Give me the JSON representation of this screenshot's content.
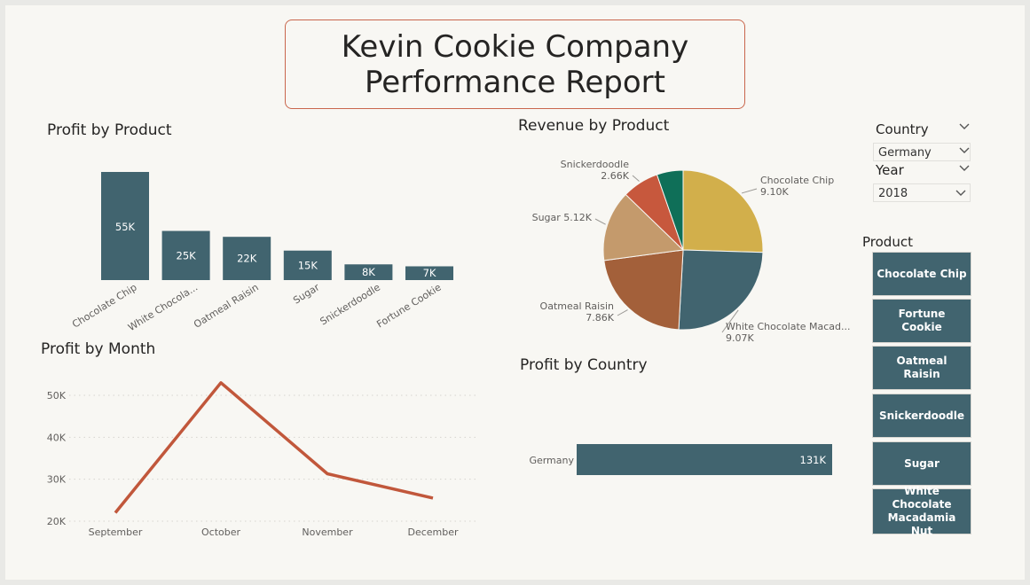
{
  "report": {
    "title_line1": "Kevin Cookie Company",
    "title_line2": "Performance Report"
  },
  "colors": {
    "teal": "#41646f",
    "orange_line": "#c1573b",
    "background": "#f8f7f3",
    "title_border": "#c9664c"
  },
  "slicers": {
    "country_label": "Country",
    "country_value": "Germany",
    "year_label": "Year",
    "year_value": "2018",
    "product_label": "Product",
    "products": [
      "Chocolate Chip",
      "Fortune Cookie",
      "Oatmeal Raisin",
      "Snickerdoodle",
      "Sugar",
      "White Chocolate Macadamia Nut"
    ]
  },
  "chart_data": [
    {
      "id": "profit-by-product",
      "type": "bar",
      "title": "Profit by Product",
      "categories": [
        "Chocolate Chip",
        "White Chocola...",
        "Oatmeal Raisin",
        "Sugar",
        "Snickerdoodle",
        "Fortune Cookie"
      ],
      "values": [
        55,
        25,
        22,
        15,
        8,
        7
      ],
      "data_labels": [
        "55K",
        "25K",
        "22K",
        "15K",
        "8K",
        "7K"
      ],
      "unit": "K",
      "color": "#41646f"
    },
    {
      "id": "revenue-by-product",
      "type": "pie",
      "title": "Revenue by Product",
      "slices": [
        {
          "label": "Chocolate Chip",
          "value": 9.1,
          "value_label": "9.10K",
          "color": "#d2af4b"
        },
        {
          "label": "White Chocolate Macad...",
          "value": 9.07,
          "value_label": "9.07K",
          "color": "#41646f"
        },
        {
          "label": "Oatmeal Raisin",
          "value": 7.86,
          "value_label": "7.86K",
          "color": "#a3603a"
        },
        {
          "label": "Sugar",
          "value": 5.12,
          "value_label": "5.12K",
          "color": "#c49a6c"
        },
        {
          "label": "Snickerdoodle",
          "value": 2.66,
          "value_label": "2.66K",
          "color": "#c7583d"
        },
        {
          "label": "",
          "value": 1.9,
          "value_label": "",
          "color": "#0f6f58"
        }
      ]
    },
    {
      "id": "profit-by-month",
      "type": "line",
      "title": "Profit by Month",
      "categories": [
        "September",
        "October",
        "November",
        "December"
      ],
      "values": [
        22,
        53,
        31.3,
        25.5
      ],
      "unit": "K",
      "yticks": [
        20,
        30,
        40,
        50
      ],
      "ytick_labels": [
        "20K",
        "30K",
        "40K",
        "50K"
      ],
      "ylim": [
        20,
        55
      ],
      "grid": true,
      "color": "#c1573b"
    },
    {
      "id": "profit-by-country",
      "type": "bar",
      "orientation": "horizontal",
      "title": "Profit by Country",
      "categories": [
        "Germany"
      ],
      "values": [
        131
      ],
      "data_labels": [
        "131K"
      ],
      "unit": "K",
      "color": "#41646f"
    }
  ]
}
